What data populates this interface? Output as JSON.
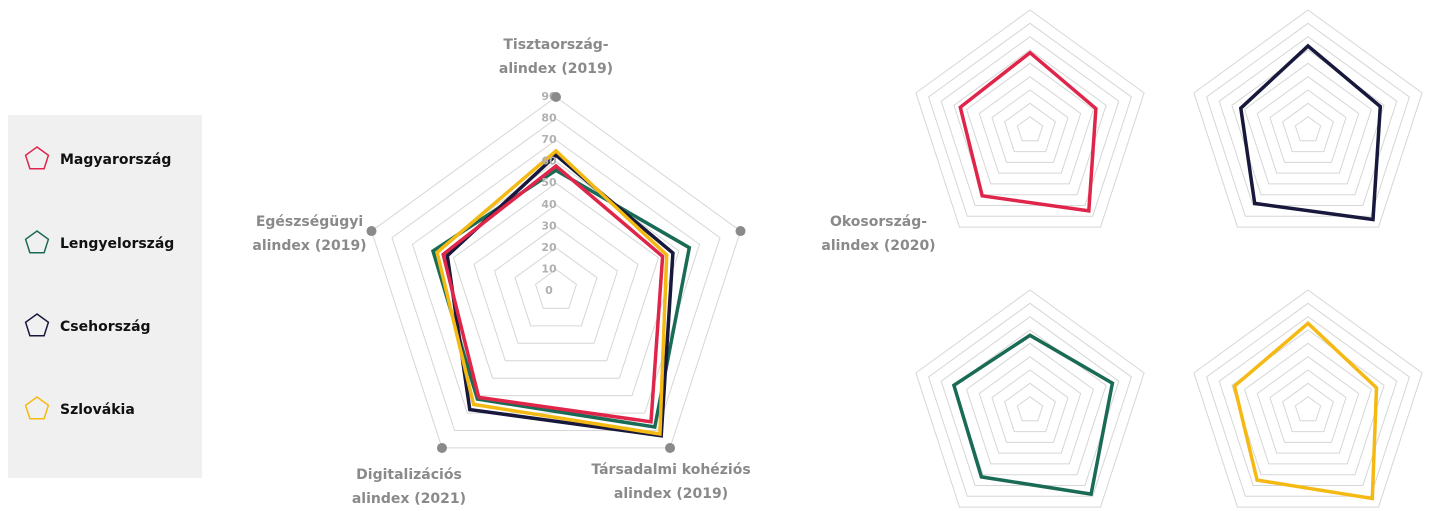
{
  "chart_data": {
    "type": "radar",
    "categories": [
      [
        "Tisztaország-",
        "alindex (2019)"
      ],
      [
        "Okosország-",
        "alindex (2020)"
      ],
      [
        "Társadalmi kohéziós",
        "alindex (2019)"
      ],
      [
        "Digitalizációs",
        "alindex (2021)"
      ],
      [
        "Egészségügyi",
        "alindex (2019)"
      ]
    ],
    "series": [
      {
        "name": "Magyarország",
        "color": "#e0254a",
        "values": [
          58,
          52,
          75,
          61,
          55
        ]
      },
      {
        "name": "Lengyelország",
        "color": "#1a6b55",
        "values": [
          56,
          65,
          78,
          62,
          60
        ]
      },
      {
        "name": "Csehország",
        "color": "#17183b",
        "values": [
          63,
          57,
          83,
          68,
          53
        ]
      },
      {
        "name": "Szlovákia",
        "color": "#f5b914",
        "values": [
          65,
          54,
          82,
          65,
          58
        ]
      }
    ],
    "ylim": [
      0,
      90
    ],
    "yticks": [
      0,
      10,
      20,
      30,
      40,
      50,
      60,
      70,
      80,
      90
    ],
    "grid": true
  }
}
